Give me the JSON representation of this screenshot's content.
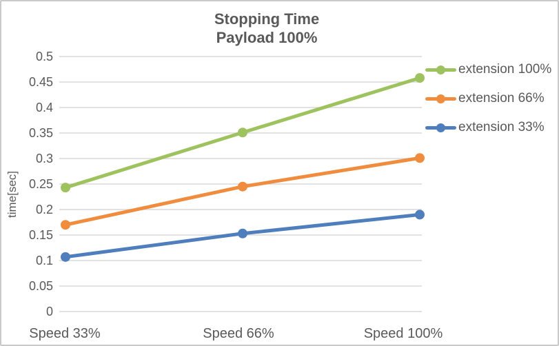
{
  "frame": {
    "background_color": "#ffffff",
    "border_color": "#c9c9c9"
  },
  "title": {
    "line1": "Stopping Time",
    "line2": "Payload 100%",
    "color": "#595959"
  },
  "chart_data": {
    "type": "line",
    "title": "Stopping Time Payload 100%",
    "categories": [
      "Speed 33%",
      "Speed 66%",
      "Speed 100%"
    ],
    "series": [
      {
        "name": "extension 100%",
        "color": "#9dc25e",
        "values": [
          0.243,
          0.351,
          0.458
        ]
      },
      {
        "name": "extension 66%",
        "color": "#f08c3e",
        "values": [
          0.17,
          0.245,
          0.301
        ]
      },
      {
        "name": "extension 33%",
        "color": "#4e7ebb",
        "values": [
          0.107,
          0.153,
          0.19
        ]
      }
    ],
    "xlabel": "",
    "ylabel": "time[sec]",
    "ylim": [
      0,
      0.5
    ],
    "ytick_step": 0.05,
    "yticks": [
      "0",
      "0.05",
      "0.1",
      "0.15",
      "0.2",
      "0.25",
      "0.3",
      "0.35",
      "0.4",
      "0.45",
      "0.5"
    ],
    "grid": "horizontal",
    "gridline_color": "#d9d9d9",
    "text_color": "#595959",
    "legend_position": "right",
    "marker": "circle"
  }
}
